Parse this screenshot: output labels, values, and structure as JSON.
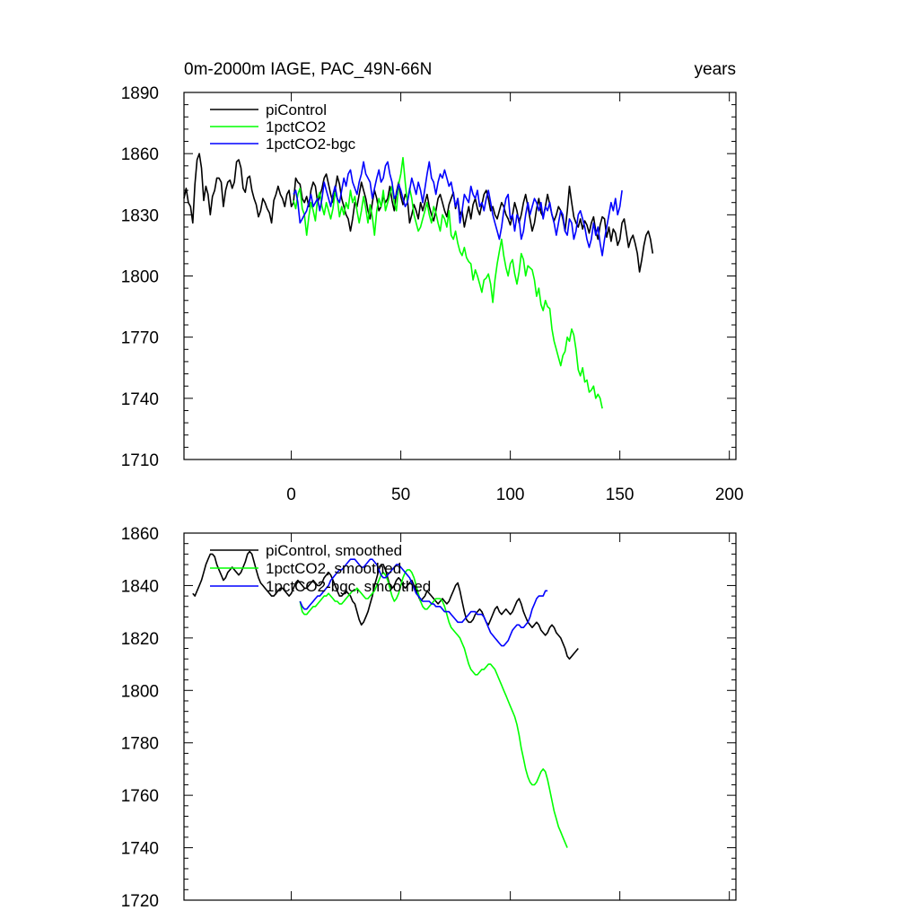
{
  "chart_data": [
    {
      "type": "line",
      "title_left": "0m-2000m IAGE, PAC_49N-66N",
      "title_right": "years",
      "xlim": [
        -49,
        203
      ],
      "ylim": [
        1710,
        1890
      ],
      "xticks": [
        0,
        50,
        100,
        150,
        200
      ],
      "xtick_labels": [
        "0",
        "50",
        "100",
        "150",
        "200"
      ],
      "yticks": [
        1710,
        1740,
        1770,
        1800,
        1830,
        1860,
        1890
      ],
      "ytick_labels": [
        "1710",
        "1740",
        "1770",
        "1800",
        "1830",
        "1860",
        "1890"
      ],
      "legend_position": "top-left",
      "series": [
        {
          "name": "piControl",
          "color": "#000000",
          "x_start": -49,
          "values": [
            1838,
            1843,
            1836,
            1834,
            1826,
            1845,
            1857,
            1860,
            1853,
            1837,
            1844,
            1840,
            1830,
            1839,
            1842,
            1848,
            1848,
            1846,
            1834,
            1842,
            1846,
            1847,
            1843,
            1846,
            1856,
            1857,
            1853,
            1843,
            1841,
            1848,
            1849,
            1842,
            1838,
            1835,
            1829,
            1832,
            1838,
            1836,
            1833,
            1831,
            1826,
            1837,
            1840,
            1844,
            1840,
            1838,
            1834,
            1840,
            1842,
            1834,
            1836,
            1848,
            1846,
            1845,
            1838,
            1836,
            1839,
            1834,
            1842,
            1846,
            1844,
            1836,
            1839,
            1843,
            1848,
            1850,
            1845,
            1840,
            1836,
            1842,
            1849,
            1845,
            1838,
            1834,
            1830,
            1828,
            1822,
            1828,
            1836,
            1834,
            1840,
            1846,
            1842,
            1838,
            1832,
            1828,
            1836,
            1842,
            1838,
            1832,
            1834,
            1839,
            1836,
            1838,
            1844,
            1837,
            1832,
            1841,
            1846,
            1839,
            1835,
            1840,
            1838,
            1826,
            1830,
            1835,
            1832,
            1828,
            1836,
            1832,
            1836,
            1840,
            1834,
            1830,
            1827,
            1832,
            1838,
            1840,
            1836,
            1832,
            1829,
            1835,
            1838,
            1841,
            1833,
            1838,
            1830,
            1832,
            1824,
            1829,
            1834,
            1828,
            1835,
            1838,
            1833,
            1830,
            1835,
            1840,
            1842,
            1838,
            1832,
            1834,
            1830,
            1828,
            1832,
            1836,
            1834,
            1830,
            1828,
            1825,
            1830,
            1836,
            1832,
            1826,
            1830,
            1836,
            1840,
            1834,
            1828,
            1822,
            1826,
            1833,
            1838,
            1831,
            1829,
            1834,
            1840,
            1835,
            1830,
            1827,
            1830,
            1834,
            1832,
            1828,
            1822,
            1832,
            1844,
            1836,
            1829,
            1826,
            1824,
            1828,
            1823,
            1827,
            1825,
            1821,
            1826,
            1829,
            1822,
            1818,
            1825,
            1829,
            1828,
            1819,
            1824,
            1817,
            1823,
            1821,
            1815,
            1818,
            1826,
            1828,
            1821,
            1814,
            1818,
            1820,
            1816,
            1811,
            1802,
            1808,
            1815,
            1820,
            1822,
            1818,
            1811
          ]
        },
        {
          "name": "1pctCO2",
          "color": "#00ff00",
          "x_start": 1,
          "values": [
            1837,
            1833,
            1840,
            1843,
            1833,
            1830,
            1820,
            1829,
            1836,
            1832,
            1827,
            1838,
            1841,
            1834,
            1830,
            1836,
            1832,
            1828,
            1833,
            1841,
            1838,
            1829,
            1834,
            1830,
            1836,
            1833,
            1842,
            1836,
            1839,
            1832,
            1826,
            1832,
            1839,
            1833,
            1826,
            1835,
            1829,
            1820,
            1832,
            1838,
            1834,
            1842,
            1832,
            1836,
            1840,
            1844,
            1836,
            1832,
            1845,
            1850,
            1858,
            1846,
            1836,
            1843,
            1838,
            1830,
            1826,
            1822,
            1824,
            1828,
            1832,
            1836,
            1830,
            1826,
            1834,
            1831,
            1826,
            1822,
            1830,
            1828,
            1824,
            1832,
            1820,
            1818,
            1822,
            1816,
            1812,
            1810,
            1814,
            1809,
            1807,
            1806,
            1798,
            1803,
            1800,
            1796,
            1792,
            1798,
            1799,
            1801,
            1796,
            1787,
            1798,
            1806,
            1812,
            1818,
            1810,
            1804,
            1800,
            1806,
            1808,
            1801,
            1796,
            1802,
            1811,
            1808,
            1800,
            1805,
            1804,
            1803,
            1798,
            1790,
            1794,
            1786,
            1783,
            1788,
            1785,
            1784,
            1774,
            1768,
            1764,
            1760,
            1756,
            1761,
            1763,
            1770,
            1768,
            1774,
            1771,
            1764,
            1754,
            1751,
            1755,
            1748,
            1749,
            1743,
            1744,
            1746,
            1740,
            1742,
            1740,
            1735
          ]
        },
        {
          "name": "1pctCO2-bgc",
          "color": "#0000ff",
          "x_start": 1,
          "values": [
            1840,
            1842,
            1836,
            1826,
            1828,
            1830,
            1832,
            1836,
            1840,
            1834,
            1836,
            1838,
            1832,
            1838,
            1846,
            1842,
            1838,
            1834,
            1840,
            1844,
            1838,
            1836,
            1842,
            1848,
            1844,
            1850,
            1852,
            1846,
            1843,
            1840,
            1846,
            1850,
            1856,
            1850,
            1848,
            1846,
            1838,
            1843,
            1848,
            1852,
            1846,
            1848,
            1854,
            1856,
            1850,
            1846,
            1838,
            1840,
            1845,
            1842,
            1838,
            1834,
            1836,
            1842,
            1848,
            1844,
            1840,
            1846,
            1842,
            1836,
            1843,
            1850,
            1856,
            1848,
            1846,
            1840,
            1846,
            1850,
            1848,
            1852,
            1848,
            1844,
            1846,
            1840,
            1834,
            1838,
            1826,
            1832,
            1840,
            1838,
            1836,
            1844,
            1840,
            1838,
            1842,
            1834,
            1836,
            1832,
            1838,
            1842,
            1836,
            1830,
            1826,
            1822,
            1818,
            1824,
            1832,
            1838,
            1840,
            1828,
            1830,
            1822,
            1830,
            1828,
            1818,
            1822,
            1830,
            1836,
            1830,
            1834,
            1838,
            1836,
            1832,
            1836,
            1828,
            1834,
            1832,
            1836,
            1830,
            1826,
            1820,
            1826,
            1832,
            1830,
            1822,
            1820,
            1828,
            1826,
            1818,
            1822,
            1830,
            1832,
            1828,
            1824,
            1818,
            1814,
            1818,
            1826,
            1820,
            1824,
            1816,
            1810,
            1818,
            1824,
            1830,
            1836,
            1832,
            1838,
            1830,
            1834,
            1842
          ]
        }
      ]
    },
    {
      "type": "line",
      "xlim": [
        -49,
        203
      ],
      "ylim": [
        1720,
        1860
      ],
      "xticks": [
        0,
        50,
        100,
        150,
        200
      ],
      "yticks": [
        1720,
        1740,
        1760,
        1780,
        1800,
        1820,
        1840,
        1860
      ],
      "ytick_labels": [
        "1720",
        "1740",
        "1760",
        "1780",
        "1800",
        "1820",
        "1840",
        "1860"
      ],
      "legend_position": "top-left",
      "series": [
        {
          "name": "piControl, smoothed",
          "color": "#000000",
          "x_start": -45,
          "values": [
            1837,
            1836,
            1838,
            1840,
            1842,
            1845,
            1848,
            1850,
            1852,
            1852,
            1851,
            1848,
            1846,
            1844,
            1842,
            1843,
            1845,
            1846,
            1847,
            1846,
            1845,
            1844,
            1845,
            1847,
            1849,
            1852,
            1853,
            1852,
            1849,
            1846,
            1843,
            1841,
            1840,
            1839,
            1838,
            1837,
            1836,
            1836,
            1837,
            1838,
            1839,
            1839,
            1838,
            1837,
            1836,
            1837,
            1839,
            1841,
            1842,
            1841,
            1840,
            1839,
            1839,
            1840,
            1841,
            1842,
            1841,
            1840,
            1840,
            1841,
            1843,
            1844,
            1845,
            1844,
            1842,
            1840,
            1838,
            1836,
            1836,
            1837,
            1838,
            1837,
            1836,
            1834,
            1833,
            1830,
            1827,
            1825,
            1826,
            1828,
            1830,
            1833,
            1836,
            1840,
            1843,
            1846,
            1848,
            1848,
            1846,
            1843,
            1840,
            1839,
            1840,
            1842,
            1843,
            1842,
            1840,
            1839,
            1840,
            1841,
            1842,
            1840,
            1838,
            1836,
            1834,
            1835,
            1836,
            1838,
            1837,
            1836,
            1835,
            1834,
            1833,
            1834,
            1835,
            1834,
            1833,
            1834,
            1836,
            1838,
            1840,
            1841,
            1838,
            1834,
            1830,
            1827,
            1826,
            1826,
            1827,
            1829,
            1830,
            1831,
            1830,
            1828,
            1826,
            1825,
            1827,
            1829,
            1831,
            1832,
            1830,
            1829,
            1830,
            1831,
            1830,
            1829,
            1830,
            1832,
            1834,
            1835,
            1833,
            1830,
            1828,
            1826,
            1825,
            1824,
            1825,
            1826,
            1825,
            1823,
            1822,
            1821,
            1822,
            1824,
            1825,
            1824,
            1822,
            1821,
            1820,
            1818,
            1816,
            1813,
            1812,
            1813,
            1814,
            1815,
            1816
          ]
        },
        {
          "name": "1pctCO2, smoothed",
          "color": "#00ff00",
          "x_start": 4,
          "values": [
            1834,
            1830,
            1829,
            1829,
            1830,
            1831,
            1832,
            1832,
            1833,
            1834,
            1835,
            1836,
            1836,
            1837,
            1836,
            1835,
            1834,
            1834,
            1833,
            1833,
            1834,
            1835,
            1836,
            1837,
            1838,
            1838,
            1839,
            1838,
            1837,
            1836,
            1835,
            1835,
            1836,
            1837,
            1838,
            1840,
            1842,
            1844,
            1845,
            1844,
            1842,
            1839,
            1836,
            1834,
            1835,
            1837,
            1840,
            1843,
            1845,
            1846,
            1846,
            1845,
            1843,
            1840,
            1837,
            1834,
            1832,
            1831,
            1831,
            1832,
            1833,
            1834,
            1835,
            1835,
            1835,
            1834,
            1832,
            1829,
            1826,
            1824,
            1823,
            1822,
            1821,
            1820,
            1818,
            1816,
            1813,
            1810,
            1808,
            1807,
            1806,
            1806,
            1807,
            1808,
            1808,
            1809,
            1810,
            1810,
            1809,
            1808,
            1806,
            1804,
            1802,
            1800,
            1798,
            1796,
            1794,
            1792,
            1790,
            1787,
            1783,
            1778,
            1774,
            1770,
            1767,
            1765,
            1764,
            1764,
            1765,
            1767,
            1769,
            1770,
            1769,
            1766,
            1762,
            1758,
            1754,
            1751,
            1748,
            1746,
            1744,
            1742,
            1740
          ]
        },
        {
          "name": "1pctCO2-bgc, smoothed",
          "color": "#0000ff",
          "x_start": 4,
          "values": [
            1834,
            1832,
            1831,
            1831,
            1832,
            1833,
            1834,
            1835,
            1836,
            1836,
            1837,
            1838,
            1839,
            1840,
            1842,
            1843,
            1844,
            1845,
            1846,
            1846,
            1847,
            1848,
            1849,
            1850,
            1850,
            1850,
            1849,
            1848,
            1847,
            1847,
            1848,
            1849,
            1850,
            1850,
            1849,
            1848,
            1846,
            1844,
            1843,
            1843,
            1844,
            1845,
            1846,
            1847,
            1848,
            1848,
            1847,
            1846,
            1845,
            1844,
            1843,
            1841,
            1839,
            1837,
            1836,
            1835,
            1834,
            1834,
            1834,
            1834,
            1833,
            1833,
            1832,
            1832,
            1832,
            1831,
            1830,
            1830,
            1830,
            1829,
            1828,
            1827,
            1826,
            1826,
            1826,
            1827,
            1828,
            1829,
            1830,
            1830,
            1830,
            1829,
            1829,
            1829,
            1828,
            1826,
            1824,
            1822,
            1821,
            1820,
            1819,
            1818,
            1817,
            1817,
            1818,
            1819,
            1821,
            1823,
            1824,
            1825,
            1825,
            1824,
            1824,
            1825,
            1826,
            1828,
            1831,
            1833,
            1835,
            1836,
            1836,
            1836,
            1838,
            1838
          ]
        }
      ]
    }
  ]
}
